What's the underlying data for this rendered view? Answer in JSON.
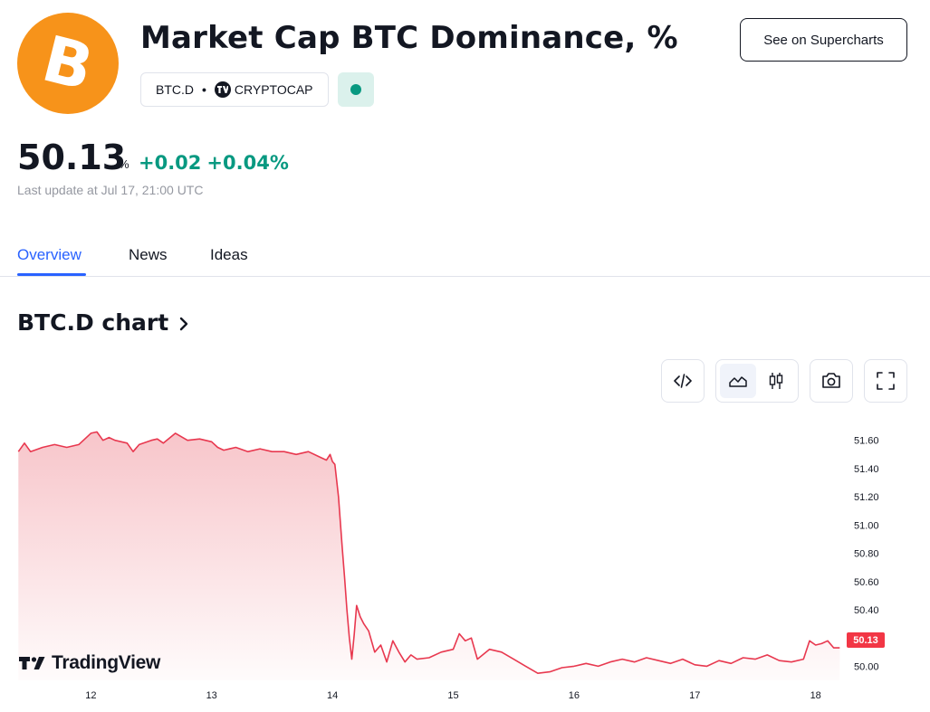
{
  "header": {
    "logo_icon": "bitcoin-logo-icon",
    "logo_symbol": "B",
    "logo_color": "#f7931a",
    "title": "Market Cap BTC Dominance, %",
    "ticker": "BTC.D",
    "separator": "•",
    "exchange_icon": "tradingview-mini-icon",
    "exchange": "CRYPTOCAP",
    "status_icon": "market-status-dot-icon",
    "status_color": "#089981",
    "supercharts_label": "See on Supercharts"
  },
  "quote": {
    "price": "50.13",
    "unit": "%",
    "change": "+0.02",
    "change_percent": "+0.04%",
    "change_color": "#089981",
    "last_update": "Last update at Jul 17, 21:00 UTC"
  },
  "tabs": [
    {
      "label": "Overview",
      "active": true
    },
    {
      "label": "News",
      "active": false
    },
    {
      "label": "Ideas",
      "active": false
    }
  ],
  "chart_section": {
    "heading": "BTC.D chart",
    "heading_icon": "chevron-right-icon",
    "toolbar": {
      "embed_icon": "code-embed-icon",
      "area_icon": "area-chart-icon",
      "candles_icon": "candlestick-icon",
      "snapshot_icon": "camera-icon",
      "fullscreen_icon": "fullscreen-icon",
      "selected_style": "area"
    },
    "watermark": "TradingView",
    "watermark_icon": "tradingview-logo-icon",
    "last_price_label": "50.13",
    "last_price_color": "#f23645"
  },
  "chart_data": {
    "type": "area",
    "title": "",
    "xlabel": "",
    "ylabel": "",
    "line_color": "#e8384f",
    "fill_color": "#f7c2c7",
    "ylim": [
      49.9,
      51.72
    ],
    "yticks": [
      51.6,
      51.4,
      51.2,
      51.0,
      50.8,
      50.6,
      50.4,
      50.2,
      50.0
    ],
    "ytick_labels": [
      "51.60",
      "51.40",
      "51.20",
      "51.00",
      "50.80",
      "50.60",
      "50.40",
      "50.20",
      "50.00"
    ],
    "xlim": [
      11.39,
      18.22
    ],
    "xticks": [
      12,
      13,
      14,
      15,
      16,
      17,
      18
    ],
    "xtick_labels": [
      "12",
      "13",
      "14",
      "15",
      "16",
      "17",
      "18"
    ],
    "grid": false,
    "series": [
      {
        "x": [
          11.4,
          11.45,
          11.5,
          11.6,
          11.7,
          11.8,
          11.9,
          12.0,
          12.05,
          12.1,
          12.15,
          12.2,
          12.3,
          12.35,
          12.4,
          12.5,
          12.55,
          12.6,
          12.7,
          12.8,
          12.9,
          13.0,
          13.05,
          13.1,
          13.2,
          13.3,
          13.4,
          13.5,
          13.6,
          13.7,
          13.8,
          13.9,
          13.95,
          13.98,
          14.0,
          14.02,
          14.05,
          14.08,
          14.1,
          14.12,
          14.14,
          14.16,
          14.18,
          14.2,
          14.23,
          14.26,
          14.3,
          14.35,
          14.4,
          14.45,
          14.5,
          14.55,
          14.6,
          14.65,
          14.7,
          14.8,
          14.9,
          15.0,
          15.05,
          15.1,
          15.15,
          15.2,
          15.3,
          15.4,
          15.5,
          15.6,
          15.7,
          15.8,
          15.9,
          16.0,
          16.1,
          16.2,
          16.3,
          16.4,
          16.5,
          16.6,
          16.7,
          16.8,
          16.9,
          17.0,
          17.1,
          17.2,
          17.3,
          17.4,
          17.5,
          17.6,
          17.7,
          17.8,
          17.9,
          17.95,
          18.0,
          18.05,
          18.1,
          18.15,
          18.2
        ],
        "y": [
          51.52,
          51.58,
          51.52,
          51.55,
          51.57,
          51.55,
          51.57,
          51.65,
          51.66,
          51.6,
          51.62,
          51.6,
          51.58,
          51.52,
          51.57,
          51.6,
          51.61,
          51.58,
          51.65,
          51.6,
          51.61,
          51.59,
          51.55,
          51.53,
          51.55,
          51.52,
          51.54,
          51.52,
          51.52,
          51.5,
          51.52,
          51.48,
          51.46,
          51.5,
          51.45,
          51.43,
          51.2,
          50.85,
          50.63,
          50.4,
          50.2,
          50.05,
          50.22,
          50.43,
          50.35,
          50.3,
          50.25,
          50.1,
          50.15,
          50.03,
          50.18,
          50.1,
          50.03,
          50.08,
          50.05,
          50.06,
          50.1,
          50.12,
          50.23,
          50.18,
          50.2,
          50.05,
          50.12,
          50.1,
          50.05,
          50.0,
          49.95,
          49.96,
          49.99,
          50.0,
          50.02,
          50.0,
          50.03,
          50.05,
          50.03,
          50.06,
          50.04,
          50.02,
          50.05,
          50.01,
          50.0,
          50.04,
          50.02,
          50.06,
          50.05,
          50.08,
          50.04,
          50.03,
          50.05,
          50.18,
          50.15,
          50.16,
          50.18,
          50.13,
          50.13
        ]
      }
    ]
  }
}
